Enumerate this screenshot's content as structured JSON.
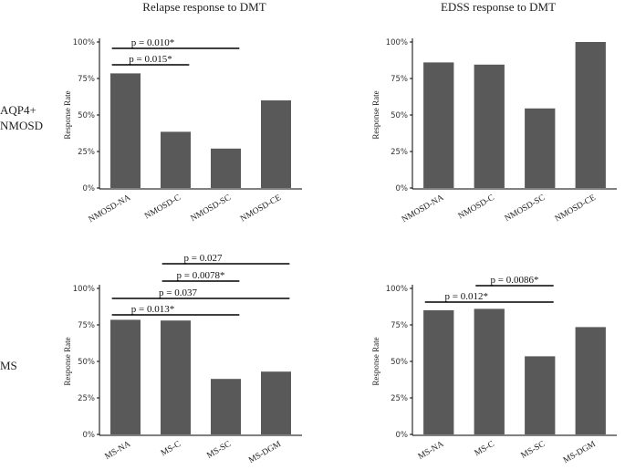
{
  "column_titles": [
    "Relapse response to DMT",
    "EDSS response to DMT"
  ],
  "row_labels": [
    [
      "AQP4+",
      "NMOSD"
    ],
    [
      "MS"
    ]
  ],
  "colors": {
    "bar": "#595959",
    "axis": "#000000",
    "text": "#222222"
  },
  "chart_data": [
    {
      "type": "bar",
      "title": "Relapse response to DMT",
      "row": "AQP4+ NMOSD",
      "ylabel": "Response Rate",
      "ylim": [
        0,
        100
      ],
      "yticks": [
        "0%",
        "25%",
        "50%",
        "75%",
        "100%"
      ],
      "categories": [
        "NMOSD-NA",
        "NMOSD-C",
        "NMOSD-SC",
        "NMOSD-CE"
      ],
      "values": [
        78.5,
        38.5,
        27,
        60
      ],
      "annotations": [
        {
          "from": "NMOSD-NA",
          "to": "NMOSD-C",
          "label": "p = 0.015*"
        },
        {
          "from": "NMOSD-NA",
          "to": "NMOSD-SC",
          "label": "p = 0.010*"
        }
      ]
    },
    {
      "type": "bar",
      "title": "EDSS response to DMT",
      "row": "AQP4+ NMOSD",
      "ylabel": "Response Rate",
      "ylim": [
        0,
        100
      ],
      "yticks": [
        "0%",
        "25%",
        "50%",
        "75%",
        "100%"
      ],
      "categories": [
        "NMOSD-NA",
        "NMOSD-C",
        "NMOSD-SC",
        "NMOSD-CE"
      ],
      "values": [
        86,
        84.5,
        54.5,
        100
      ],
      "annotations": []
    },
    {
      "type": "bar",
      "title": "Relapse response to DMT",
      "row": "MS",
      "ylabel": "Response Rate",
      "ylim": [
        0,
        100
      ],
      "yticks": [
        "0%",
        "25%",
        "50%",
        "75%",
        "100%"
      ],
      "categories": [
        "MS-NA",
        "MS-C",
        "MS-SC",
        "MS-DGM"
      ],
      "values": [
        78.5,
        78,
        38,
        43
      ],
      "annotations": [
        {
          "from": "MS-NA",
          "to": "MS-SC",
          "label": "p = 0.013*"
        },
        {
          "from": "MS-NA",
          "to": "MS-DGM",
          "label": "p = 0.037"
        },
        {
          "from": "MS-C",
          "to": "MS-SC",
          "label": "p = 0.0078*"
        },
        {
          "from": "MS-C",
          "to": "MS-DGM",
          "label": "p = 0.027"
        }
      ]
    },
    {
      "type": "bar",
      "title": "EDSS response to DMT",
      "row": "MS",
      "ylabel": "Response Rate",
      "ylim": [
        0,
        100
      ],
      "yticks": [
        "0%",
        "25%",
        "50%",
        "75%",
        "100%"
      ],
      "categories": [
        "MS-NA",
        "MS-C",
        "MS-SC",
        "MS-DGM"
      ],
      "values": [
        85,
        86,
        53.5,
        73.5
      ],
      "annotations": [
        {
          "from": "MS-NA",
          "to": "MS-SC",
          "label": "p = 0.012*"
        },
        {
          "from": "MS-C",
          "to": "MS-SC",
          "label": "p = 0.0086*"
        }
      ]
    }
  ]
}
